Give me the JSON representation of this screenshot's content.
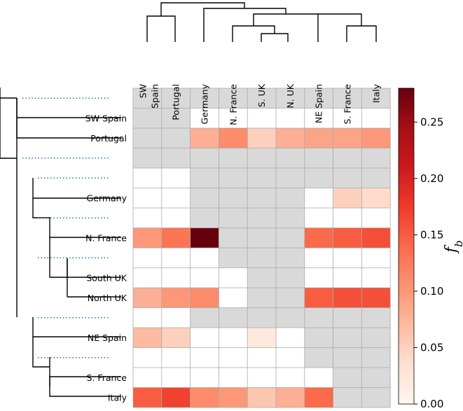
{
  "chart_data": {
    "type": "heatmap",
    "colormap": "Reds",
    "column_labels": [
      [
        "SW",
        "Spain"
      ],
      [
        "Portugal"
      ],
      [
        "Germany"
      ],
      [
        "N. France"
      ],
      [
        "S. UK"
      ],
      [
        "N. UK"
      ],
      [
        "NE Spain"
      ],
      [
        "S. France"
      ],
      [
        "Italy"
      ]
    ],
    "row_labels": [
      "",
      "SW Spain",
      "Portugal",
      "",
      "",
      "Germany",
      "",
      "N. France",
      "",
      "South UK",
      "North UK",
      "",
      "NE Spain",
      "",
      "S. France",
      "Italy"
    ],
    "values": [
      [
        null,
        null,
        null,
        null,
        null,
        null,
        null,
        null,
        null
      ],
      [
        null,
        null,
        0,
        0,
        0,
        0,
        0,
        0,
        0
      ],
      [
        null,
        null,
        0.08,
        0.11,
        0.05,
        0.08,
        0.09,
        0.09,
        0.1
      ],
      [
        null,
        null,
        null,
        null,
        null,
        null,
        null,
        null,
        null
      ],
      [
        0,
        0,
        null,
        null,
        null,
        null,
        null,
        null,
        null
      ],
      [
        0,
        0,
        null,
        null,
        null,
        null,
        0,
        0.05,
        0.04
      ],
      [
        0,
        0,
        null,
        null,
        null,
        null,
        0,
        0,
        0
      ],
      [
        0.1,
        0.13,
        0.28,
        null,
        null,
        null,
        0.14,
        0.15,
        0.16
      ],
      [
        0,
        0,
        0,
        null,
        null,
        null,
        0,
        0,
        0
      ],
      [
        0,
        0,
        0,
        0,
        null,
        null,
        0,
        0,
        0
      ],
      [
        0.08,
        0.1,
        0.11,
        0,
        null,
        null,
        0.15,
        0.16,
        0.16
      ],
      [
        0,
        0,
        null,
        null,
        null,
        null,
        null,
        null,
        null
      ],
      [
        0.07,
        0.05,
        0,
        0,
        0.02,
        0,
        null,
        null,
        null
      ],
      [
        0,
        0,
        0,
        0,
        0,
        0,
        null,
        null,
        null
      ],
      [
        0,
        0,
        0,
        0,
        0,
        0,
        0,
        null,
        null
      ],
      [
        0.15,
        0.17,
        0.11,
        0.1,
        0.06,
        0.08,
        0.14,
        null,
        null
      ]
    ],
    "colorbar": {
      "label": "f_b",
      "label_main": "f",
      "label_sub": "b",
      "range": [
        0,
        0.28
      ],
      "ticks": [
        0.0,
        0.05,
        0.1,
        0.15,
        0.2,
        0.25
      ],
      "tick_labels": [
        "0.00",
        "0.05",
        "0.10",
        "0.15",
        "0.20",
        "0.25"
      ]
    },
    "colors": {
      "masked": "#d9d9d9",
      "grid": "#a9a9a9",
      "dendrogram": "#000000",
      "guide": "#1f77b4"
    }
  }
}
